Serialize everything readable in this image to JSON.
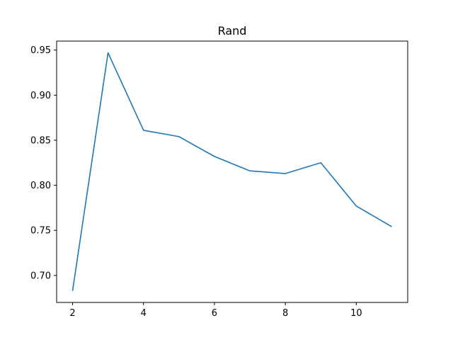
{
  "chart_data": {
    "type": "line",
    "title": "Rand",
    "xlabel": "",
    "ylabel": "",
    "x": [
      2,
      3,
      4,
      5,
      6,
      7,
      8,
      9,
      10,
      11
    ],
    "series": [
      {
        "values": [
          0.683,
          0.947,
          0.861,
          0.854,
          0.832,
          0.816,
          0.813,
          0.825,
          0.777,
          0.754
        ],
        "color": "#1f77b4"
      }
    ],
    "xlim": [
      1.55,
      11.45
    ],
    "ylim": [
      0.67,
      0.96
    ],
    "xticks": [
      2,
      4,
      6,
      8,
      10
    ],
    "yticks": [
      0.7,
      0.75,
      0.8,
      0.85,
      0.9,
      0.95
    ],
    "ytick_labels": [
      "0.70",
      "0.75",
      "0.80",
      "0.85",
      "0.90",
      "0.95"
    ],
    "grid": false,
    "legend": "none"
  }
}
